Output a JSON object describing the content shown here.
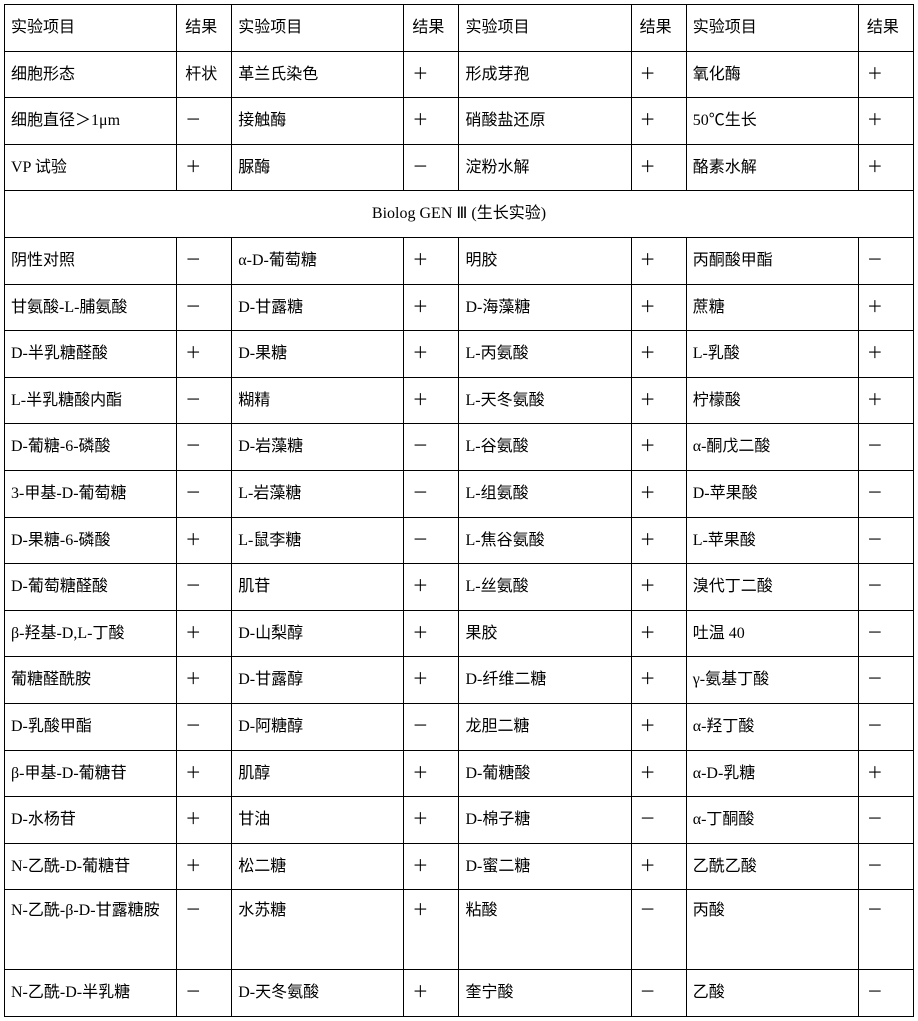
{
  "headers": {
    "item": "实验项目",
    "result": "结果"
  },
  "section_header": "Biolog GEN Ⅲ (生长实验)",
  "top_rows": [
    [
      "细胞形态",
      "杆状",
      "革兰氏染色",
      "＋",
      "形成芽孢",
      "＋",
      "氧化酶",
      "＋"
    ],
    [
      "细胞直径＞1μm",
      "－",
      "接触酶",
      "＋",
      "硝酸盐还原",
      "＋",
      "50℃生长",
      "＋"
    ],
    [
      "VP 试验",
      "＋",
      "脲酶",
      "－",
      "淀粉水解",
      "＋",
      "酪素水解",
      "＋"
    ]
  ],
  "bottom_rows": [
    [
      "阴性对照",
      "－",
      "α-D-葡萄糖",
      "＋",
      "明胶",
      "＋",
      "丙酮酸甲酯",
      "－"
    ],
    [
      "甘氨酸-L-脯氨酸",
      "－",
      "D-甘露糖",
      "＋",
      "D-海藻糖",
      "＋",
      "蔗糖",
      "＋"
    ],
    [
      "D-半乳糖醛酸",
      "＋",
      "D-果糖",
      "＋",
      "L-丙氨酸",
      "＋",
      "L-乳酸",
      "＋"
    ],
    [
      "L-半乳糖酸内酯",
      "－",
      "糊精",
      "＋",
      "L-天冬氨酸",
      "＋",
      "柠檬酸",
      "＋"
    ],
    [
      "D-葡糖-6-磷酸",
      "－",
      "D-岩藻糖",
      "－",
      "L-谷氨酸",
      "＋",
      "α-酮戊二酸",
      "－"
    ],
    [
      "3-甲基-D-葡萄糖",
      "－",
      "L-岩藻糖",
      "－",
      "L-组氨酸",
      "＋",
      "D-苹果酸",
      "－"
    ],
    [
      "D-果糖-6-磷酸",
      "＋",
      "L-鼠李糖",
      "－",
      "L-焦谷氨酸",
      "＋",
      "L-苹果酸",
      "－"
    ],
    [
      "D-葡萄糖醛酸",
      "－",
      "肌苷",
      "＋",
      "L-丝氨酸",
      "＋",
      "溴代丁二酸",
      "－"
    ],
    [
      "β-羟基-D,L-丁酸",
      "＋",
      "D-山梨醇",
      "＋",
      "果胶",
      "＋",
      "吐温 40",
      "－"
    ],
    [
      "葡糖醛酰胺",
      "＋",
      "D-甘露醇",
      "＋",
      "D-纤维二糖",
      "＋",
      "γ-氨基丁酸",
      "－"
    ],
    [
      "D-乳酸甲酯",
      "－",
      "D-阿糖醇",
      "－",
      "龙胆二糖",
      "＋",
      "α-羟丁酸",
      "－"
    ],
    [
      "β-甲基-D-葡糖苷",
      "＋",
      "肌醇",
      "＋",
      "D-葡糖酸",
      "＋",
      "α-D-乳糖",
      "＋"
    ],
    [
      "D-水杨苷",
      "＋",
      "甘油",
      "＋",
      "D-棉子糖",
      "－",
      "α-丁酮酸",
      "－"
    ],
    [
      "N-乙酰-D-葡糖苷",
      "＋",
      "松二糖",
      "＋",
      "D-蜜二糖",
      "＋",
      "乙酰乙酸",
      "－"
    ],
    [
      "N-乙酰-β-D-甘露糖胺",
      "－",
      "水苏糖",
      "＋",
      "粘酸",
      "－",
      "丙酸",
      "－"
    ],
    [
      "N-乙酰-D-半乳糖",
      "－",
      "D-天冬氨酸",
      "＋",
      "奎宁酸",
      "－",
      "乙酸",
      "－"
    ]
  ]
}
